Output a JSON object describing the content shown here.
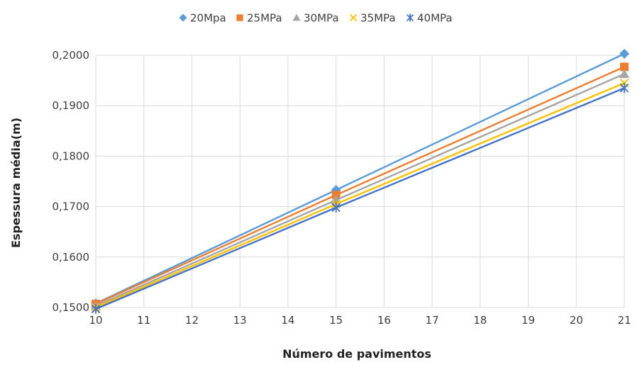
{
  "chart_data": {
    "type": "line",
    "title": "",
    "xlabel": "Número de pavimentos",
    "ylabel": "Espessura média(m)",
    "xlim": [
      10,
      21
    ],
    "ylim": [
      0.15,
      0.2
    ],
    "x_ticks": [
      10,
      11,
      12,
      13,
      14,
      15,
      16,
      17,
      18,
      19,
      20,
      21
    ],
    "x_tick_labels": [
      "10",
      "11",
      "12",
      "13",
      "14",
      "15",
      "16",
      "17",
      "18",
      "19",
      "20",
      "21"
    ],
    "y_ticks": [
      0.15,
      0.16,
      0.17,
      0.18,
      0.19,
      0.2
    ],
    "y_tick_labels": [
      "0,1500",
      "0,1600",
      "0,1700",
      "0,1800",
      "0,1900",
      "0,2000"
    ],
    "grid": true,
    "legend_position": "top",
    "x": [
      10,
      15,
      21
    ],
    "series": [
      {
        "name": "20Mpa",
        "values": [
          0.1508,
          0.1733,
          0.2003
        ],
        "color": "#5b9bd5",
        "marker": "diamond"
      },
      {
        "name": "25MPa",
        "values": [
          0.1507,
          0.1723,
          0.1977
        ],
        "color": "#ed7d31",
        "marker": "square"
      },
      {
        "name": "30MPa",
        "values": [
          0.1503,
          0.1713,
          0.1963
        ],
        "color": "#a5a5a5",
        "marker": "triangle"
      },
      {
        "name": "35MPa",
        "values": [
          0.15,
          0.1705,
          0.1945
        ],
        "color": "#ffc000",
        "marker": "x"
      },
      {
        "name": "40MPa",
        "values": [
          0.1497,
          0.1698,
          0.1935
        ],
        "color": "#4472c4",
        "marker": "star"
      }
    ]
  }
}
